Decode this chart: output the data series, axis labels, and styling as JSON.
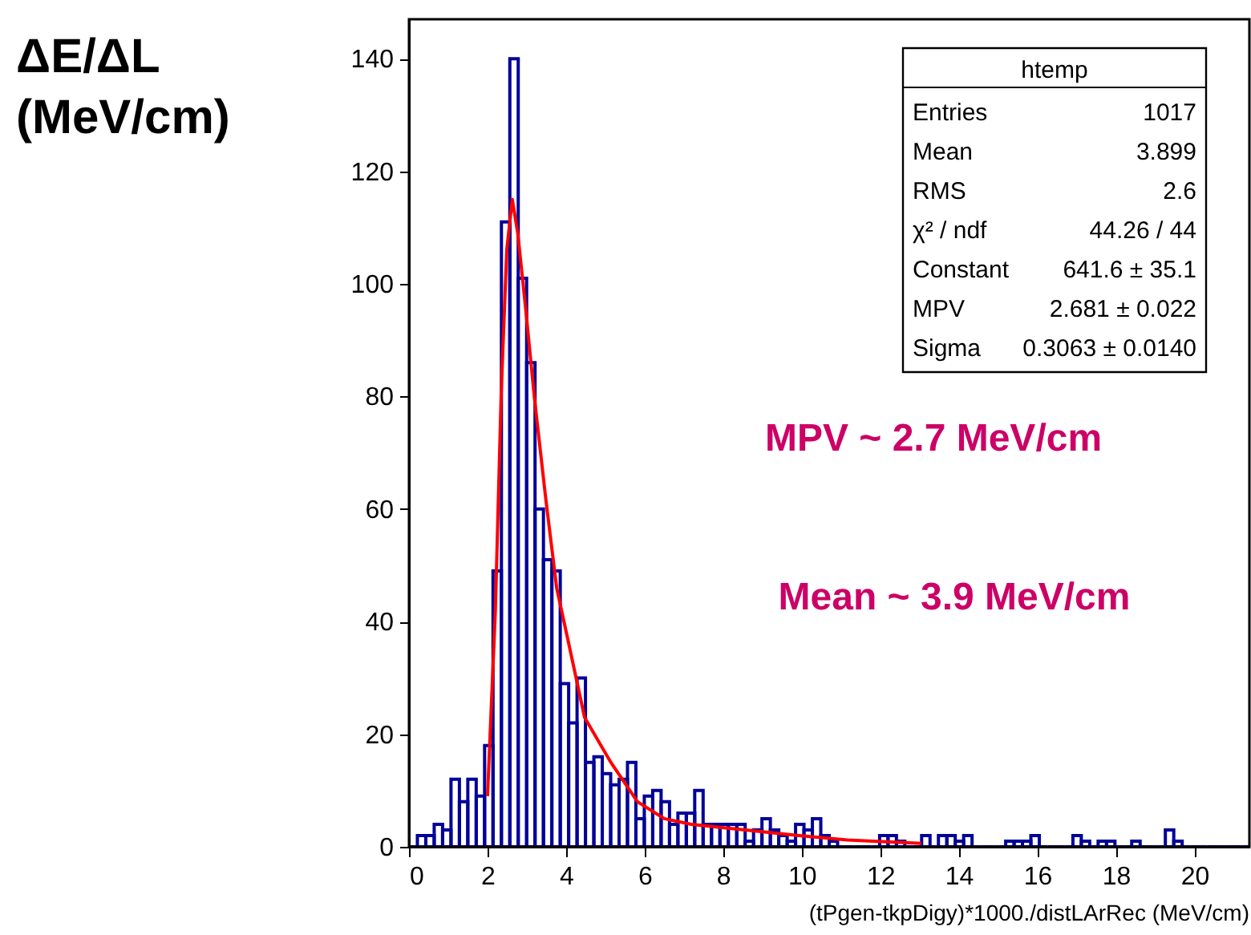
{
  "chart_data": {
    "type": "histogram",
    "ylabel": "ΔE/ΔL (MeV/cm)",
    "xlabel": "(tPgen-tkpDigy)*1000./distLArRec (MeV/cm)",
    "xlim": [
      0,
      21.4
    ],
    "ylim": [
      0,
      147
    ],
    "xticks": [
      0,
      2,
      4,
      6,
      8,
      10,
      12,
      14,
      16,
      18,
      20
    ],
    "yticks": [
      0,
      20,
      40,
      60,
      80,
      100,
      120,
      140
    ],
    "grid": false,
    "series": [
      {
        "color": "#000099",
        "values": [
          0,
          2,
          2,
          4,
          3,
          12,
          8,
          12,
          9,
          18,
          49,
          111,
          140,
          101,
          86,
          60,
          51,
          49,
          29,
          22,
          30,
          15,
          16,
          13,
          11,
          12,
          15,
          5,
          9,
          10,
          8,
          4,
          6,
          6,
          10,
          4,
          4,
          4,
          4,
          4,
          1,
          3,
          5,
          3,
          2,
          1,
          4,
          3,
          5,
          2,
          1,
          0,
          0,
          0,
          0,
          0,
          2,
          2,
          1,
          0,
          0,
          2,
          0,
          2,
          2,
          1,
          2,
          0,
          0,
          0,
          0,
          1,
          1,
          1,
          2,
          0,
          0,
          0,
          0,
          2,
          1,
          0,
          1,
          1,
          0,
          0,
          1,
          0,
          0,
          0,
          3,
          1,
          0,
          0,
          0,
          0,
          0,
          0,
          0,
          0
        ]
      },
      {
        "type": "line",
        "color": "#ff0000",
        "x": [
          2.0,
          2.2,
          2.35,
          2.49,
          2.63,
          2.77,
          2.98,
          3.19,
          3.48,
          3.76,
          4.04,
          4.47,
          5.14,
          5.82,
          6.5,
          7.19,
          8.56,
          9.93,
          11.16,
          13.05
        ],
        "values": [
          9,
          42,
          81,
          106,
          115,
          109,
          95,
          80,
          62,
          46,
          37,
          23,
          15,
          8,
          5,
          4,
          3,
          2,
          1.2,
          0.6
        ]
      }
    ],
    "bins": [
      0,
      0.214,
      0.428,
      0.642,
      0.856,
      1.07,
      1.284,
      1.498,
      1.712,
      1.926,
      2.14,
      2.354,
      2.568,
      2.782,
      2.996,
      3.21,
      3.424,
      3.638,
      3.852,
      4.066,
      4.28,
      4.494,
      4.708,
      4.922,
      5.136,
      5.35,
      5.564,
      5.778,
      5.992,
      6.206,
      6.42,
      6.634,
      6.848,
      7.062,
      7.276,
      7.49,
      7.704,
      7.918,
      8.132,
      8.346,
      8.56,
      8.774,
      8.988,
      9.202,
      9.416,
      9.63,
      9.844,
      10.058,
      10.272,
      10.486,
      10.7,
      10.914,
      11.128,
      11.342,
      11.556,
      11.77,
      11.984,
      12.198,
      12.412,
      12.626,
      12.84,
      13.054,
      13.268,
      13.482,
      13.696,
      13.91,
      14.124,
      14.338,
      14.552,
      14.766,
      14.98,
      15.194,
      15.408,
      15.622,
      15.836,
      16.05,
      16.264,
      16.478,
      16.692,
      16.906,
      17.12,
      17.334,
      17.548,
      17.762,
      17.976,
      18.19,
      18.404,
      18.618,
      18.832,
      19.046,
      19.26,
      19.474,
      19.688,
      19.902,
      20.116,
      20.33,
      20.544,
      20.758,
      20.972,
      21.186,
      21.4
    ],
    "annotations": [
      "htemp",
      "Entries",
      "1017",
      "Mean",
      "3.899",
      "RMS",
      "2.6",
      "χ² / ndf",
      "44.26 / 44",
      "Constant",
      "641.6 ± 35.1",
      "MPV",
      "2.681 ± 0.022",
      "Sigma",
      "0.3063 ± 0.0140",
      "MPV ~ 2.7 MeV/cm",
      "Mean ~ 3.9 MeV/cm"
    ]
  }
}
